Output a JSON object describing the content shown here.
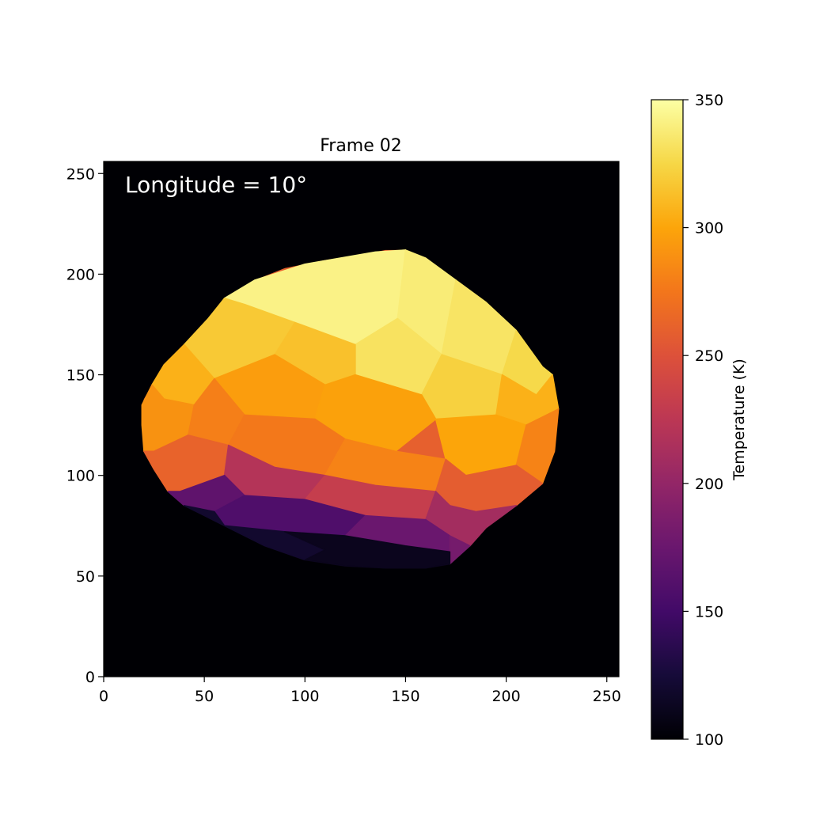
{
  "chart_data": {
    "type": "heatmap",
    "title": "Frame 02",
    "annotation": "Longitude = 10°",
    "xlabel": "",
    "ylabel": "",
    "xlim": [
      0,
      256
    ],
    "ylim": [
      0,
      256
    ],
    "x_ticks": [
      0,
      50,
      100,
      150,
      200,
      250
    ],
    "y_ticks": [
      0,
      50,
      100,
      150,
      200,
      250
    ],
    "background_value": 100,
    "colormap": "inferno",
    "colorbar": {
      "label": "Temperature (K)",
      "range": [
        100,
        350
      ],
      "ticks": [
        100,
        150,
        200,
        250,
        300,
        350
      ]
    },
    "outline": [
      [
        19,
        135
      ],
      [
        20,
        138
      ],
      [
        24,
        145
      ],
      [
        30,
        155
      ],
      [
        40,
        165
      ],
      [
        52,
        178
      ],
      [
        60,
        188
      ],
      [
        67,
        192
      ],
      [
        75,
        197
      ],
      [
        90,
        203
      ],
      [
        110,
        207
      ],
      [
        130,
        210
      ],
      [
        140,
        212
      ],
      [
        150,
        212
      ],
      [
        160,
        208
      ],
      [
        175,
        197
      ],
      [
        190,
        186
      ],
      [
        205,
        172
      ],
      [
        218,
        154
      ],
      [
        223,
        150
      ],
      [
        226,
        133
      ],
      [
        224,
        112
      ],
      [
        218,
        96
      ],
      [
        205,
        85
      ],
      [
        190,
        74
      ],
      [
        182,
        65
      ],
      [
        172,
        56
      ],
      [
        160,
        54
      ],
      [
        140,
        54
      ],
      [
        120,
        55
      ],
      [
        100,
        58
      ],
      [
        80,
        65
      ],
      [
        60,
        75
      ],
      [
        40,
        85
      ],
      [
        32,
        92
      ],
      [
        25,
        103
      ],
      [
        20,
        112
      ],
      [
        19,
        125
      ]
    ],
    "facets": [
      {
        "pts": [
          [
            60,
            188
          ],
          [
            75,
            197
          ],
          [
            100,
            205
          ],
          [
            135,
            211
          ],
          [
            150,
            212
          ],
          [
            146,
            178
          ],
          [
            125,
            165
          ],
          [
            95,
            176
          ],
          [
            70,
            185
          ]
        ],
        "T": 342
      },
      {
        "pts": [
          [
            150,
            212
          ],
          [
            160,
            208
          ],
          [
            175,
            197
          ],
          [
            168,
            160
          ],
          [
            146,
            178
          ]
        ],
        "T": 338
      },
      {
        "pts": [
          [
            175,
            197
          ],
          [
            190,
            186
          ],
          [
            205,
            172
          ],
          [
            198,
            150
          ],
          [
            168,
            160
          ]
        ],
        "T": 333
      },
      {
        "pts": [
          [
            205,
            172
          ],
          [
            218,
            154
          ],
          [
            223,
            150
          ],
          [
            215,
            140
          ],
          [
            198,
            150
          ]
        ],
        "T": 326
      },
      {
        "pts": [
          [
            146,
            178
          ],
          [
            168,
            160
          ],
          [
            158,
            140
          ],
          [
            125,
            150
          ],
          [
            125,
            165
          ]
        ],
        "T": 332
      },
      {
        "pts": [
          [
            168,
            160
          ],
          [
            198,
            150
          ],
          [
            195,
            130
          ],
          [
            165,
            128
          ],
          [
            158,
            140
          ]
        ],
        "T": 322
      },
      {
        "pts": [
          [
            198,
            150
          ],
          [
            215,
            140
          ],
          [
            223,
            150
          ],
          [
            226,
            133
          ],
          [
            210,
            125
          ],
          [
            195,
            130
          ]
        ],
        "T": 306
      },
      {
        "pts": [
          [
            40,
            165
          ],
          [
            52,
            178
          ],
          [
            60,
            188
          ],
          [
            70,
            185
          ],
          [
            95,
            176
          ],
          [
            85,
            160
          ],
          [
            55,
            148
          ]
        ],
        "T": 318
      },
      {
        "pts": [
          [
            95,
            176
          ],
          [
            125,
            165
          ],
          [
            125,
            150
          ],
          [
            110,
            145
          ],
          [
            85,
            160
          ]
        ],
        "T": 314
      },
      {
        "pts": [
          [
            24,
            145
          ],
          [
            30,
            155
          ],
          [
            40,
            165
          ],
          [
            55,
            148
          ],
          [
            45,
            135
          ],
          [
            30,
            138
          ]
        ],
        "T": 306
      },
      {
        "pts": [
          [
            55,
            148
          ],
          [
            85,
            160
          ],
          [
            110,
            145
          ],
          [
            105,
            128
          ],
          [
            70,
            130
          ]
        ],
        "T": 296
      },
      {
        "pts": [
          [
            110,
            145
          ],
          [
            125,
            150
          ],
          [
            158,
            140
          ],
          [
            165,
            128
          ],
          [
            145,
            112
          ],
          [
            120,
            118
          ],
          [
            105,
            128
          ]
        ],
        "T": 298
      },
      {
        "pts": [
          [
            165,
            128
          ],
          [
            195,
            130
          ],
          [
            210,
            125
          ],
          [
            205,
            105
          ],
          [
            180,
            100
          ],
          [
            170,
            108
          ]
        ],
        "T": 300
      },
      {
        "pts": [
          [
            210,
            125
          ],
          [
            226,
            133
          ],
          [
            224,
            112
          ],
          [
            218,
            96
          ],
          [
            205,
            105
          ]
        ],
        "T": 282
      },
      {
        "pts": [
          [
            19,
            135
          ],
          [
            24,
            145
          ],
          [
            30,
            138
          ],
          [
            45,
            135
          ],
          [
            42,
            120
          ],
          [
            25,
            112
          ],
          [
            20,
            112
          ],
          [
            19,
            125
          ]
        ],
        "T": 290
      },
      {
        "pts": [
          [
            45,
            135
          ],
          [
            55,
            148
          ],
          [
            70,
            130
          ],
          [
            62,
            115
          ],
          [
            42,
            120
          ]
        ],
        "T": 280
      },
      {
        "pts": [
          [
            70,
            130
          ],
          [
            105,
            128
          ],
          [
            120,
            118
          ],
          [
            110,
            100
          ],
          [
            85,
            104
          ],
          [
            62,
            115
          ]
        ],
        "T": 276
      },
      {
        "pts": [
          [
            120,
            118
          ],
          [
            145,
            112
          ],
          [
            170,
            108
          ],
          [
            165,
            92
          ],
          [
            135,
            95
          ],
          [
            110,
            100
          ]
        ],
        "T": 282
      },
      {
        "pts": [
          [
            170,
            108
          ],
          [
            180,
            100
          ],
          [
            205,
            105
          ],
          [
            218,
            96
          ],
          [
            205,
            85
          ],
          [
            185,
            82
          ],
          [
            172,
            85
          ],
          [
            165,
            92
          ]
        ],
        "T": 258
      },
      {
        "pts": [
          [
            20,
            112
          ],
          [
            25,
            112
          ],
          [
            42,
            120
          ],
          [
            62,
            115
          ],
          [
            60,
            100
          ],
          [
            38,
            92
          ],
          [
            32,
            92
          ],
          [
            25,
            103
          ]
        ],
        "T": 262
      },
      {
        "pts": [
          [
            62,
            115
          ],
          [
            85,
            104
          ],
          [
            110,
            100
          ],
          [
            100,
            88
          ],
          [
            70,
            90
          ],
          [
            60,
            100
          ]
        ],
        "T": 220
      },
      {
        "pts": [
          [
            110,
            100
          ],
          [
            135,
            95
          ],
          [
            165,
            92
          ],
          [
            160,
            78
          ],
          [
            130,
            80
          ],
          [
            100,
            88
          ]
        ],
        "T": 232
      },
      {
        "pts": [
          [
            165,
            92
          ],
          [
            172,
            85
          ],
          [
            185,
            82
          ],
          [
            205,
            85
          ],
          [
            190,
            74
          ],
          [
            182,
            65
          ],
          [
            172,
            70
          ],
          [
            160,
            78
          ]
        ],
        "T": 210
      },
      {
        "pts": [
          [
            32,
            92
          ],
          [
            38,
            92
          ],
          [
            60,
            100
          ],
          [
            70,
            90
          ],
          [
            55,
            82
          ],
          [
            40,
            85
          ]
        ],
        "T": 168
      },
      {
        "pts": [
          [
            70,
            90
          ],
          [
            100,
            88
          ],
          [
            130,
            80
          ],
          [
            120,
            70
          ],
          [
            90,
            72
          ],
          [
            60,
            75
          ],
          [
            55,
            82
          ]
        ],
        "T": 158
      },
      {
        "pts": [
          [
            130,
            80
          ],
          [
            160,
            78
          ],
          [
            172,
            70
          ],
          [
            172,
            62
          ],
          [
            150,
            65
          ],
          [
            120,
            70
          ]
        ],
        "T": 175
      },
      {
        "pts": [
          [
            172,
            70
          ],
          [
            182,
            65
          ],
          [
            172,
            56
          ],
          [
            172,
            62
          ]
        ],
        "T": 182
      },
      {
        "pts": [
          [
            40,
            85
          ],
          [
            55,
            82
          ],
          [
            60,
            75
          ],
          [
            80,
            65
          ],
          [
            100,
            58
          ],
          [
            110,
            63
          ],
          [
            90,
            72
          ],
          [
            60,
            75
          ]
        ],
        "T": 120
      },
      {
        "pts": [
          [
            90,
            72
          ],
          [
            120,
            70
          ],
          [
            150,
            65
          ],
          [
            172,
            62
          ],
          [
            172,
            56
          ],
          [
            160,
            54
          ],
          [
            140,
            54
          ],
          [
            120,
            55
          ],
          [
            100,
            58
          ],
          [
            110,
            63
          ]
        ],
        "T": 112
      }
    ]
  }
}
